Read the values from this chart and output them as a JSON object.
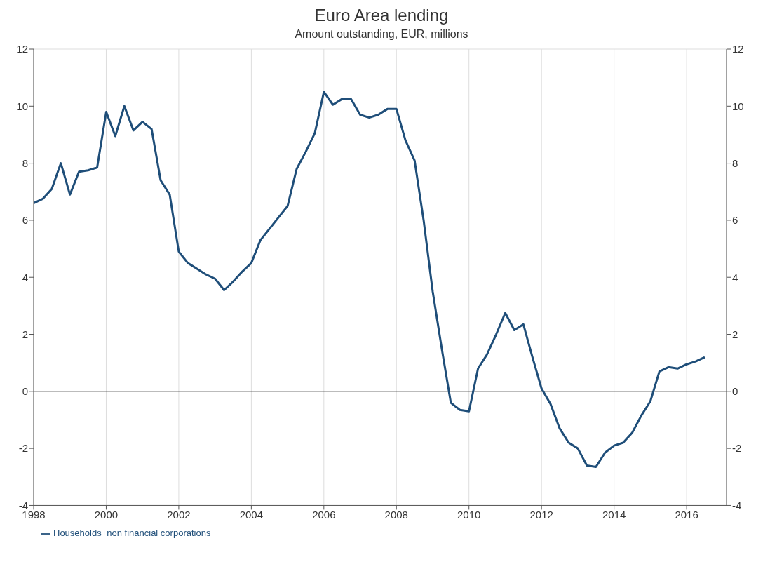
{
  "chart_data": {
    "type": "line",
    "title": "Euro Area lending",
    "subtitle": "Amount outstanding, EUR, millions",
    "x": [
      1998,
      1998.25,
      1998.5,
      1998.75,
      1999,
      1999.25,
      1999.5,
      1999.75,
      2000,
      2000.25,
      2000.5,
      2000.75,
      2001,
      2001.25,
      2001.5,
      2001.75,
      2002,
      2002.25,
      2002.5,
      2002.75,
      2003,
      2003.25,
      2003.5,
      2003.75,
      2004,
      2004.25,
      2004.5,
      2004.75,
      2005,
      2005.25,
      2005.5,
      2005.75,
      2006,
      2006.25,
      2006.5,
      2006.75,
      2007,
      2007.25,
      2007.5,
      2007.75,
      2008,
      2008.25,
      2008.5,
      2008.75,
      2009,
      2009.25,
      2009.5,
      2009.75,
      2010,
      2010.25,
      2010.5,
      2010.75,
      2011,
      2011.25,
      2011.5,
      2011.75,
      2012,
      2012.25,
      2012.5,
      2012.75,
      2013,
      2013.25,
      2013.5,
      2013.75,
      2014,
      2014.25,
      2014.5,
      2014.75,
      2015,
      2015.25,
      2015.5,
      2015.75,
      2016,
      2016.25,
      2016.5
    ],
    "series": [
      {
        "name": "Households+non financial corporations",
        "color": "#1f4e79",
        "values": [
          6.6,
          6.75,
          7.1,
          8.0,
          6.9,
          7.7,
          7.75,
          7.85,
          9.8,
          8.95,
          10.0,
          9.15,
          9.45,
          9.2,
          7.4,
          6.9,
          4.9,
          4.5,
          4.3,
          4.1,
          3.95,
          3.55,
          3.85,
          4.2,
          4.5,
          5.3,
          5.7,
          6.1,
          6.5,
          7.8,
          8.4,
          9.05,
          10.5,
          10.05,
          10.25,
          10.25,
          9.7,
          9.6,
          9.7,
          9.9,
          9.9,
          8.8,
          8.1,
          6.0,
          3.5,
          1.5,
          -0.4,
          -0.65,
          -0.7,
          0.8,
          1.3,
          2.0,
          2.75,
          2.15,
          2.35,
          1.2,
          0.1,
          -0.45,
          -1.3,
          -1.8,
          -2.0,
          -2.6,
          -2.65,
          -2.15,
          -1.9,
          -1.8,
          -1.45,
          -0.85,
          -0.35,
          0.7,
          0.85,
          0.8,
          0.95,
          1.05,
          1.2
        ]
      }
    ],
    "xlim": [
      1998,
      2017.1
    ],
    "xticks": [
      1998,
      2000,
      2002,
      2004,
      2006,
      2008,
      2010,
      2012,
      2014,
      2016
    ],
    "ylim": [
      -4,
      12
    ],
    "yticks": [
      -4,
      -2,
      0,
      2,
      4,
      6,
      8,
      10,
      12
    ],
    "y2lim": [
      -4,
      12
    ],
    "y2ticks": [
      -4,
      -2,
      0,
      2,
      4,
      6,
      8,
      10,
      12
    ],
    "ref_lines": [
      {
        "axis": "y",
        "value": 0,
        "color": "#333333"
      }
    ],
    "grid": true,
    "legend": "bottom left",
    "marker": "none",
    "line_style": "solid"
  }
}
